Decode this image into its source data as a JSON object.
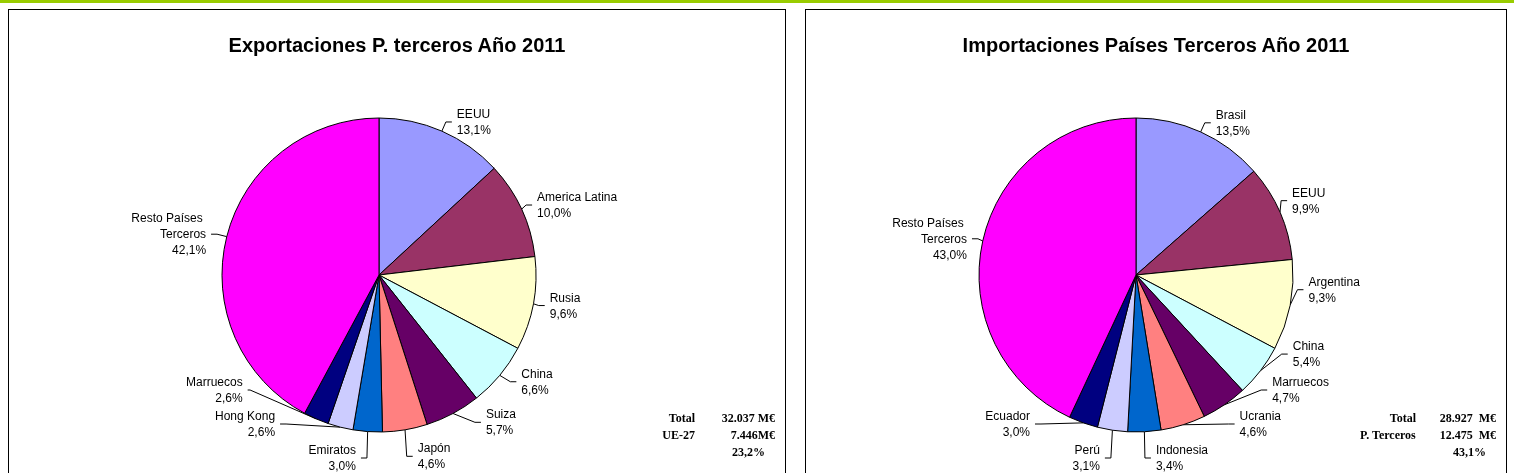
{
  "chart_data": [
    {
      "type": "pie",
      "title": "Exportaciones P. terceros Año 2011",
      "categories": [
        "EEUU",
        "America Latina",
        "Rusia",
        "China",
        "Suiza",
        "Japón",
        "Emiratos",
        "Hong Kong",
        "Marruecos",
        "Resto Países Terceros"
      ],
      "values": [
        13.1,
        10.0,
        9.6,
        6.6,
        5.7,
        4.6,
        3.0,
        2.6,
        2.6,
        42.1
      ],
      "value_labels": [
        "13,1%",
        "10,0%",
        "9,6%",
        "6,6%",
        "5,7%",
        "4,6%",
        "3,0%",
        "2,6%",
        "2,6%",
        "42,1%"
      ],
      "colors": [
        "#9999ff",
        "#993366",
        "#ffffcc",
        "#ccffff",
        "#660066",
        "#ff8080",
        "#0066cc",
        "#ccccff",
        "#000080",
        "#ff00ff"
      ],
      "annotations": [
        "Total",
        "32.037 M€",
        "UE-27",
        "7.446M€",
        "23,2%"
      ],
      "legend": false
    },
    {
      "type": "pie",
      "title": "Importaciones Países Terceros Año 2011",
      "categories": [
        "Brasil",
        "EEUU",
        "Argentina",
        "China",
        "Marruecos",
        "Ucrania",
        "Indonesia",
        "Perú",
        "Ecuador",
        "Resto Países Terceros"
      ],
      "values": [
        13.5,
        9.9,
        9.3,
        5.4,
        4.7,
        4.6,
        3.4,
        3.1,
        3.0,
        43.0
      ],
      "value_labels": [
        "13,5%",
        "9,9%",
        "9,3%",
        "5,4%",
        "4,7%",
        "4,6%",
        "3,4%",
        "3,1%",
        "3,0%",
        "43,0%"
      ],
      "colors": [
        "#9999ff",
        "#993366",
        "#ffffcc",
        "#ccffff",
        "#660066",
        "#ff8080",
        "#0066cc",
        "#ccccff",
        "#000080",
        "#ff00ff"
      ],
      "annotations": [
        "Total",
        "28.927  M€",
        "P. Terceros",
        "12.475  M€",
        "43,1%"
      ],
      "legend": false
    }
  ]
}
